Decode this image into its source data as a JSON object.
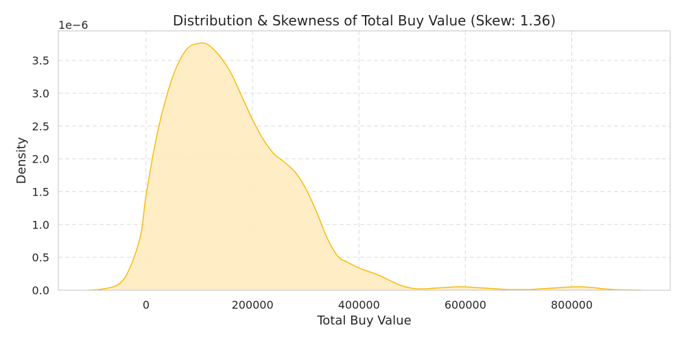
{
  "chart_data": {
    "type": "area",
    "title": "Distribution & Skewness of Total Buy Value (Skew: 1.36)",
    "xlabel": "Total Buy Value",
    "ylabel": "Density",
    "y_offset_label": "1e−6",
    "xlim": [
      -165000,
      985000
    ],
    "ylim": [
      0,
      3.95
    ],
    "x_ticks": [
      0,
      200000,
      400000,
      600000,
      800000
    ],
    "x_tick_labels": [
      "0",
      "200000",
      "400000",
      "600000",
      "800000"
    ],
    "y_ticks": [
      0,
      0.5,
      1.0,
      1.5,
      2.0,
      2.5,
      3.0,
      3.5
    ],
    "y_tick_labels": [
      "0.0",
      "0.5",
      "1.0",
      "1.5",
      "2.0",
      "2.5",
      "3.0",
      "3.5"
    ],
    "grid": true,
    "colors": {
      "line": "#f5b800",
      "fill": "#ffebbf"
    },
    "series": [
      {
        "x": [
          -110000,
          -80000,
          -50000,
          -30000,
          -10000,
          0,
          20000,
          40000,
          60000,
          80000,
          100000,
          110000,
          120000,
          140000,
          160000,
          180000,
          200000,
          220000,
          240000,
          260000,
          280000,
          300000,
          320000,
          340000,
          360000,
          380000,
          400000,
          420000,
          440000,
          460000,
          480000,
          500000,
          520000,
          540000,
          560000,
          580000,
          600000,
          620000,
          640000,
          660000,
          680000,
          700000,
          720000,
          740000,
          760000,
          780000,
          800000,
          820000,
          840000,
          860000,
          880000,
          900000,
          930000
        ],
        "y": [
          0.0,
          0.02,
          0.1,
          0.35,
          0.85,
          1.45,
          2.35,
          3.0,
          3.45,
          3.7,
          3.76,
          3.76,
          3.72,
          3.55,
          3.3,
          2.95,
          2.6,
          2.3,
          2.08,
          1.95,
          1.8,
          1.55,
          1.2,
          0.8,
          0.52,
          0.42,
          0.34,
          0.28,
          0.22,
          0.14,
          0.07,
          0.03,
          0.02,
          0.03,
          0.04,
          0.05,
          0.05,
          0.04,
          0.03,
          0.02,
          0.01,
          0.01,
          0.01,
          0.02,
          0.03,
          0.04,
          0.05,
          0.05,
          0.04,
          0.02,
          0.01,
          0.005,
          0.0
        ]
      }
    ]
  }
}
